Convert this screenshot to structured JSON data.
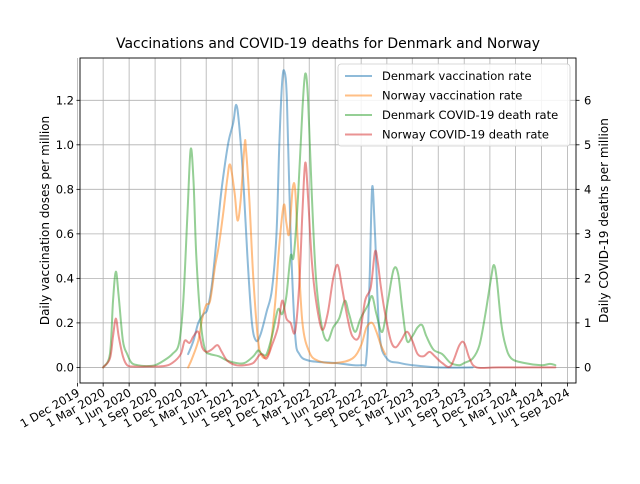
{
  "chart_data": {
    "type": "line",
    "title": "Vaccinations and COVID-19 deaths for Denmark and Norway",
    "ylabel_left": "Daily vaccination doses per million",
    "ylabel_right": "Daily COVID-19 deaths per million",
    "ylim_left": [
      -0.07,
      1.39
    ],
    "ylim_right": [
      -0.35,
      6.95
    ],
    "yticks_left": [
      "0.0",
      "0.2",
      "0.4",
      "0.6",
      "0.8",
      "1.0",
      "1.2"
    ],
    "yticks_right": [
      "0",
      "1",
      "2",
      "3",
      "4",
      "5",
      "6"
    ],
    "xlim": [
      "2019-12-10",
      "2024-10-01"
    ],
    "xticks": [
      "1 Dec 2019",
      "1 Mar 2020",
      "1 Jun 2020",
      "1 Sep 2020",
      "1 Dec 2020",
      "1 Mar 2021",
      "1 Jun 2021",
      "1 Sep 2021",
      "1 Dec 2021",
      "1 Mar 2022",
      "1 Jun 2022",
      "1 Sep 2022",
      "1 Dec 2022",
      "1 Mar 2023",
      "1 Jun 2023",
      "1 Sep 2023",
      "1 Dec 2023",
      "1 Mar 2024",
      "1 Jun 2024",
      "1 Sep 2024"
    ],
    "xtick_dates": [
      "2019-12-01",
      "2020-03-01",
      "2020-06-01",
      "2020-09-01",
      "2020-12-01",
      "2021-03-01",
      "2021-06-01",
      "2021-09-01",
      "2021-12-01",
      "2022-03-01",
      "2022-06-01",
      "2022-09-01",
      "2022-12-01",
      "2023-03-01",
      "2023-06-01",
      "2023-09-01",
      "2023-12-01",
      "2024-03-01",
      "2024-06-01",
      "2024-09-01"
    ],
    "grid": true,
    "legend_position": "top-right",
    "series": [
      {
        "name": "Denmark vaccination rate",
        "axis": "left",
        "color": "#1f77b4",
        "points": [
          [
            "2020-12-27",
            0.06
          ],
          [
            "2021-01-15",
            0.12
          ],
          [
            "2021-02-01",
            0.2
          ],
          [
            "2021-02-20",
            0.24
          ],
          [
            "2021-03-05",
            0.26
          ],
          [
            "2021-03-20",
            0.36
          ],
          [
            "2021-04-01",
            0.5
          ],
          [
            "2021-04-20",
            0.75
          ],
          [
            "2021-05-05",
            0.9
          ],
          [
            "2021-05-20",
            1.02
          ],
          [
            "2021-06-05",
            1.1
          ],
          [
            "2021-06-15",
            1.18
          ],
          [
            "2021-06-25",
            1.1
          ],
          [
            "2021-07-10",
            0.85
          ],
          [
            "2021-07-25",
            0.5
          ],
          [
            "2021-08-10",
            0.2
          ],
          [
            "2021-08-25",
            0.12
          ],
          [
            "2021-09-10",
            0.15
          ],
          [
            "2021-10-01",
            0.25
          ],
          [
            "2021-10-20",
            0.35
          ],
          [
            "2021-11-05",
            0.6
          ],
          [
            "2021-11-15",
            1.0
          ],
          [
            "2021-11-25",
            1.28
          ],
          [
            "2021-12-03",
            1.33
          ],
          [
            "2021-12-12",
            1.2
          ],
          [
            "2021-12-25",
            0.6
          ],
          [
            "2022-01-10",
            0.15
          ],
          [
            "2022-01-25",
            0.06
          ],
          [
            "2022-03-01",
            0.03
          ],
          [
            "2022-06-01",
            0.02
          ],
          [
            "2022-09-01",
            0.01
          ],
          [
            "2022-09-20",
            0.05
          ],
          [
            "2022-10-01",
            0.4
          ],
          [
            "2022-10-10",
            0.81
          ],
          [
            "2022-10-20",
            0.6
          ],
          [
            "2022-11-05",
            0.15
          ],
          [
            "2022-12-01",
            0.04
          ],
          [
            "2023-01-15",
            0.02
          ],
          [
            "2023-03-01",
            0.01
          ],
          [
            "2023-06-01",
            0.0
          ],
          [
            "2023-10-01",
            0.0
          ]
        ]
      },
      {
        "name": "Norway vaccination rate",
        "axis": "left",
        "color": "#ff7f0e",
        "points": [
          [
            "2020-12-27",
            0.0
          ],
          [
            "2021-01-10",
            0.04
          ],
          [
            "2021-02-01",
            0.12
          ],
          [
            "2021-02-15",
            0.22
          ],
          [
            "2021-03-01",
            0.28
          ],
          [
            "2021-03-15",
            0.3
          ],
          [
            "2021-04-01",
            0.45
          ],
          [
            "2021-04-15",
            0.55
          ],
          [
            "2021-05-01",
            0.7
          ],
          [
            "2021-05-15",
            0.85
          ],
          [
            "2021-05-25",
            0.91
          ],
          [
            "2021-06-10",
            0.78
          ],
          [
            "2021-06-20",
            0.66
          ],
          [
            "2021-07-01",
            0.75
          ],
          [
            "2021-07-15",
            1.0
          ],
          [
            "2021-07-20",
            0.98
          ],
          [
            "2021-08-01",
            0.75
          ],
          [
            "2021-08-15",
            0.4
          ],
          [
            "2021-09-01",
            0.12
          ],
          [
            "2021-09-15",
            0.05
          ],
          [
            "2021-10-01",
            0.05
          ],
          [
            "2021-10-15",
            0.1
          ],
          [
            "2021-11-01",
            0.3
          ],
          [
            "2021-11-15",
            0.55
          ],
          [
            "2021-12-01",
            0.73
          ],
          [
            "2021-12-10",
            0.65
          ],
          [
            "2021-12-20",
            0.6
          ],
          [
            "2022-01-01",
            0.8
          ],
          [
            "2022-01-10",
            0.8
          ],
          [
            "2022-01-20",
            0.55
          ],
          [
            "2022-02-05",
            0.2
          ],
          [
            "2022-03-01",
            0.07
          ],
          [
            "2022-04-01",
            0.03
          ],
          [
            "2022-06-01",
            0.02
          ],
          [
            "2022-08-01",
            0.04
          ],
          [
            "2022-09-01",
            0.1
          ],
          [
            "2022-09-20",
            0.18
          ],
          [
            "2022-10-10",
            0.2
          ],
          [
            "2022-10-25",
            0.16
          ],
          [
            "2022-11-10",
            0.1
          ],
          [
            "2022-11-25",
            0.06
          ]
        ]
      },
      {
        "name": "Denmark COVID-19 death rate",
        "axis": "right",
        "color": "#2ca02c",
        "points": [
          [
            "2020-03-01",
            0.0
          ],
          [
            "2020-03-25",
            0.3
          ],
          [
            "2020-04-05",
            1.5
          ],
          [
            "2020-04-15",
            2.15
          ],
          [
            "2020-04-25",
            1.6
          ],
          [
            "2020-05-10",
            0.6
          ],
          [
            "2020-05-25",
            0.3
          ],
          [
            "2020-06-10",
            0.1
          ],
          [
            "2020-07-01",
            0.05
          ],
          [
            "2020-08-01",
            0.03
          ],
          [
            "2020-09-01",
            0.05
          ],
          [
            "2020-10-01",
            0.15
          ],
          [
            "2020-11-01",
            0.3
          ],
          [
            "2020-11-25",
            0.55
          ],
          [
            "2020-12-10",
            1.5
          ],
          [
            "2020-12-25",
            3.5
          ],
          [
            "2021-01-05",
            4.9
          ],
          [
            "2021-01-15",
            4.2
          ],
          [
            "2021-01-25",
            2.5
          ],
          [
            "2021-02-10",
            1.0
          ],
          [
            "2021-02-25",
            0.4
          ],
          [
            "2021-03-15",
            0.3
          ],
          [
            "2021-04-15",
            0.25
          ],
          [
            "2021-05-15",
            0.15
          ],
          [
            "2021-06-15",
            0.1
          ],
          [
            "2021-07-15",
            0.1
          ],
          [
            "2021-08-15",
            0.25
          ],
          [
            "2021-09-01",
            0.38
          ],
          [
            "2021-09-15",
            0.3
          ],
          [
            "2021-10-01",
            0.3
          ],
          [
            "2021-10-20",
            0.7
          ],
          [
            "2021-11-10",
            1.3
          ],
          [
            "2021-11-25",
            1.2
          ],
          [
            "2021-12-10",
            1.6
          ],
          [
            "2021-12-25",
            2.5
          ],
          [
            "2022-01-05",
            2.5
          ],
          [
            "2022-01-20",
            3.8
          ],
          [
            "2022-02-05",
            5.8
          ],
          [
            "2022-02-15",
            6.6
          ],
          [
            "2022-02-25",
            6.0
          ],
          [
            "2022-03-10",
            3.9
          ],
          [
            "2022-03-25",
            2.0
          ],
          [
            "2022-04-15",
            0.9
          ],
          [
            "2022-05-05",
            0.6
          ],
          [
            "2022-05-25",
            0.9
          ],
          [
            "2022-06-15",
            1.1
          ],
          [
            "2022-07-05",
            1.5
          ],
          [
            "2022-07-20",
            1.2
          ],
          [
            "2022-08-10",
            0.8
          ],
          [
            "2022-08-30",
            1.1
          ],
          [
            "2022-09-25",
            1.4
          ],
          [
            "2022-10-10",
            1.6
          ],
          [
            "2022-10-25",
            1.2
          ],
          [
            "2022-11-15",
            0.8
          ],
          [
            "2022-12-05",
            1.5
          ],
          [
            "2022-12-25",
            2.2
          ],
          [
            "2023-01-10",
            2.1
          ],
          [
            "2023-01-25",
            1.3
          ],
          [
            "2023-02-10",
            0.6
          ],
          [
            "2023-03-01",
            0.7
          ],
          [
            "2023-03-20",
            0.9
          ],
          [
            "2023-04-05",
            0.95
          ],
          [
            "2023-04-20",
            0.7
          ],
          [
            "2023-05-15",
            0.4
          ],
          [
            "2023-06-15",
            0.3
          ],
          [
            "2023-07-15",
            0.1
          ],
          [
            "2023-08-15",
            0.05
          ],
          [
            "2023-09-01",
            0.1
          ],
          [
            "2023-10-01",
            0.2
          ],
          [
            "2023-10-25",
            0.5
          ],
          [
            "2023-11-15",
            1.2
          ],
          [
            "2023-12-05",
            2.0
          ],
          [
            "2023-12-15",
            2.3
          ],
          [
            "2023-12-25",
            2.0
          ],
          [
            "2024-01-10",
            1.0
          ],
          [
            "2024-01-25",
            0.5
          ],
          [
            "2024-02-15",
            0.2
          ],
          [
            "2024-04-01",
            0.1
          ],
          [
            "2024-06-01",
            0.05
          ],
          [
            "2024-07-01",
            0.08
          ],
          [
            "2024-07-20",
            0.05
          ]
        ]
      },
      {
        "name": "Norway COVID-19 death rate",
        "axis": "right",
        "color": "#d62728",
        "points": [
          [
            "2020-03-01",
            0.0
          ],
          [
            "2020-03-25",
            0.2
          ],
          [
            "2020-04-05",
            0.7
          ],
          [
            "2020-04-15",
            1.1
          ],
          [
            "2020-04-25",
            0.7
          ],
          [
            "2020-05-10",
            0.25
          ],
          [
            "2020-05-25",
            0.05
          ],
          [
            "2020-06-15",
            0.02
          ],
          [
            "2020-08-01",
            0.02
          ],
          [
            "2020-10-01",
            0.03
          ],
          [
            "2020-11-01",
            0.1
          ],
          [
            "2020-12-01",
            0.3
          ],
          [
            "2020-12-15",
            0.6
          ],
          [
            "2021-01-01",
            0.55
          ],
          [
            "2021-01-15",
            0.7
          ],
          [
            "2021-02-01",
            0.8
          ],
          [
            "2021-02-15",
            0.45
          ],
          [
            "2021-03-01",
            0.35
          ],
          [
            "2021-03-20",
            0.4
          ],
          [
            "2021-04-10",
            0.5
          ],
          [
            "2021-04-25",
            0.35
          ],
          [
            "2021-05-15",
            0.15
          ],
          [
            "2021-06-15",
            0.05
          ],
          [
            "2021-07-15",
            0.05
          ],
          [
            "2021-08-15",
            0.1
          ],
          [
            "2021-09-10",
            0.3
          ],
          [
            "2021-10-01",
            0.2
          ],
          [
            "2021-10-20",
            0.5
          ],
          [
            "2021-11-10",
            0.9
          ],
          [
            "2021-11-25",
            1.5
          ],
          [
            "2021-12-10",
            1.1
          ],
          [
            "2021-12-25",
            1.0
          ],
          [
            "2022-01-10",
            0.8
          ],
          [
            "2022-01-25",
            1.9
          ],
          [
            "2022-02-05",
            3.5
          ],
          [
            "2022-02-15",
            4.6
          ],
          [
            "2022-02-25",
            3.8
          ],
          [
            "2022-03-10",
            2.4
          ],
          [
            "2022-03-25",
            1.5
          ],
          [
            "2022-04-15",
            0.85
          ],
          [
            "2022-05-05",
            1.2
          ],
          [
            "2022-05-25",
            2.0
          ],
          [
            "2022-06-10",
            2.3
          ],
          [
            "2022-06-25",
            1.8
          ],
          [
            "2022-07-15",
            1.1
          ],
          [
            "2022-08-01",
            0.7
          ],
          [
            "2022-08-25",
            0.7
          ],
          [
            "2022-09-15",
            1.5
          ],
          [
            "2022-10-05",
            1.8
          ],
          [
            "2022-10-20",
            2.6
          ],
          [
            "2022-10-30",
            2.35
          ],
          [
            "2022-11-10",
            1.8
          ],
          [
            "2022-11-25",
            1.2
          ],
          [
            "2022-12-15",
            0.6
          ],
          [
            "2023-01-01",
            0.45
          ],
          [
            "2023-01-20",
            0.6
          ],
          [
            "2023-02-10",
            0.8
          ],
          [
            "2023-03-01",
            0.6
          ],
          [
            "2023-03-20",
            0.3
          ],
          [
            "2023-04-10",
            0.25
          ],
          [
            "2023-05-01",
            0.35
          ],
          [
            "2023-05-20",
            0.25
          ],
          [
            "2023-06-15",
            0.1
          ],
          [
            "2023-07-15",
            0.03
          ],
          [
            "2023-08-15",
            0.5
          ],
          [
            "2023-09-01",
            0.55
          ],
          [
            "2023-09-20",
            0.2
          ],
          [
            "2023-10-15",
            0.0
          ],
          [
            "2024-01-01",
            0.0
          ],
          [
            "2024-07-20",
            0.0
          ]
        ]
      }
    ]
  }
}
